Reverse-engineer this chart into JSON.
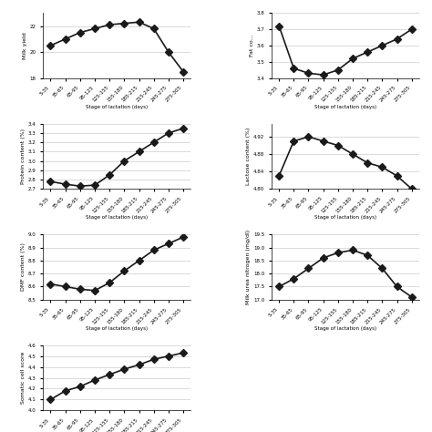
{
  "x_labels": [
    "5-35",
    "35-65",
    "65-95",
    "95-125",
    "125-155",
    "155-180",
    "185-215",
    "215-245",
    "245-275",
    "275-305"
  ],
  "milk_yield": {
    "ylabel": "Milk yield",
    "ylim": [
      18.0,
      23.0
    ],
    "yticks": [
      18.0,
      20.0,
      22.0
    ],
    "values": [
      20.5,
      21.0,
      21.5,
      21.8,
      22.1,
      22.2,
      22.3,
      21.8,
      20.0,
      18.5
    ]
  },
  "fat_content": {
    "ylabel": "Fat co...",
    "ylim": [
      3.4,
      3.8
    ],
    "yticks": [
      3.4,
      3.5,
      3.6,
      3.7,
      3.8
    ],
    "values": [
      3.72,
      3.46,
      3.43,
      3.42,
      3.45,
      3.52,
      3.56,
      3.6,
      3.64,
      3.7
    ]
  },
  "protein_content": {
    "ylabel": "Protein content (%)",
    "ylim": [
      2.7,
      3.4
    ],
    "yticks": [
      2.7,
      2.8,
      2.9,
      3.0,
      3.1,
      3.2,
      3.3,
      3.4
    ],
    "values": [
      2.78,
      2.75,
      2.73,
      2.74,
      2.85,
      3.0,
      3.1,
      3.2,
      3.3,
      3.35
    ]
  },
  "lactose_content": {
    "ylabel": "Lactose content (%)",
    "ylim": [
      4.8,
      4.95
    ],
    "yticks": [
      4.8,
      4.84,
      4.88,
      4.92
    ],
    "values": [
      4.83,
      4.91,
      4.92,
      4.91,
      4.9,
      4.88,
      4.86,
      4.85,
      4.83,
      4.8
    ]
  },
  "dmf_content": {
    "ylabel": "DMF content (%)",
    "ylim": [
      8.5,
      9.0
    ],
    "yticks": [
      8.5,
      8.6,
      8.7,
      8.8,
      8.9,
      9.0
    ],
    "values": [
      8.62,
      8.6,
      8.58,
      8.57,
      8.63,
      8.72,
      8.8,
      8.88,
      8.93,
      8.98
    ]
  },
  "milk_urea_nitrogen": {
    "ylabel": "Milk urea nitrogen (mg/dl)",
    "ylim": [
      17.0,
      19.5
    ],
    "yticks": [
      17.0,
      17.5,
      18.0,
      18.5,
      19.0,
      19.5
    ],
    "values": [
      17.5,
      17.8,
      18.2,
      18.6,
      18.8,
      18.9,
      18.7,
      18.2,
      17.5,
      17.1
    ]
  },
  "somatic_cell_score": {
    "ylabel": "Somatic cell score",
    "ylim": [
      4.0,
      4.6
    ],
    "yticks": [
      4.0,
      4.1,
      4.2,
      4.3,
      4.4,
      4.5,
      4.6
    ],
    "values": [
      4.1,
      4.18,
      4.22,
      4.28,
      4.33,
      4.38,
      4.42,
      4.47,
      4.5,
      4.53
    ]
  },
  "xlabel": "Stage of lactation (days)",
  "line_color": "#1a1a1a",
  "marker": "D",
  "markersize": 4,
  "linewidth": 1.2
}
